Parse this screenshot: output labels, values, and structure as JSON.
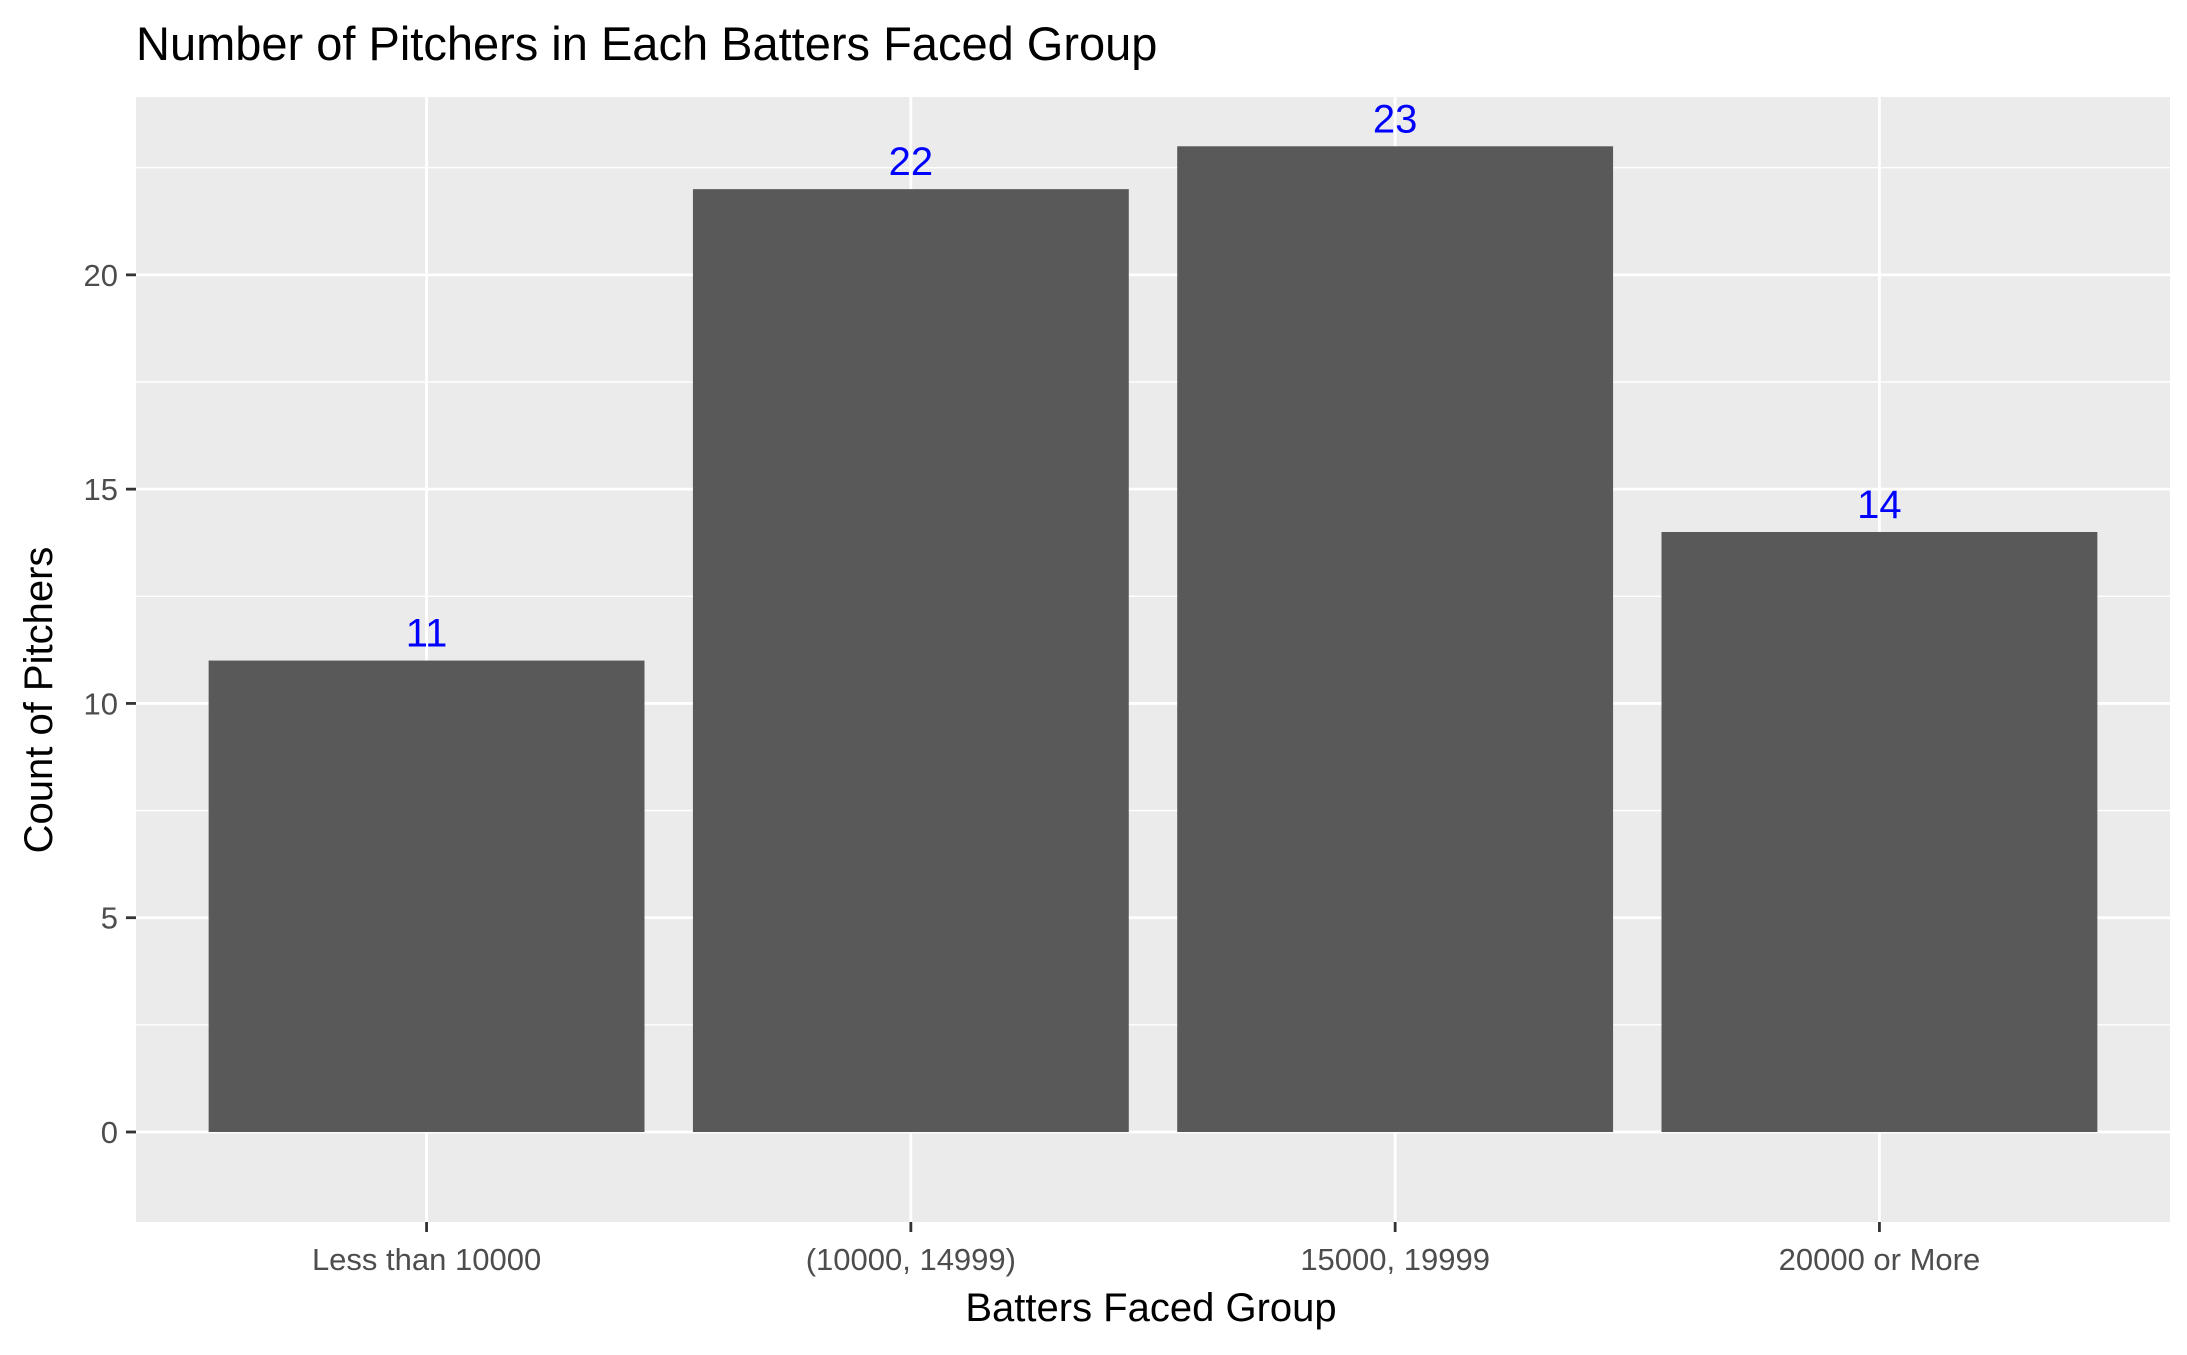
{
  "chart_data": {
    "type": "bar",
    "title": "Number of Pitchers in Each Batters Faced Group",
    "xlabel": "Batters Faced Group",
    "ylabel": "Count of Pitchers",
    "categories": [
      "Less than 10000",
      "(10000, 14999)",
      "15000, 19999",
      "20000 or More"
    ],
    "values": [
      11,
      22,
      23,
      14
    ],
    "data_labels": [
      "11",
      "22",
      "23",
      "14"
    ],
    "yticks": [
      0,
      5,
      10,
      15,
      20
    ],
    "ytick_labels": [
      "0",
      "5",
      "10",
      "15",
      "20"
    ],
    "ylim": [
      -2.1,
      24.15
    ],
    "grid": true,
    "legend": "none",
    "colors": {
      "bar": "#595959",
      "panel": "#ebebeb",
      "grid": "#ffffff",
      "data_label": "#0000ff",
      "axis_text": "#4d4d4d",
      "title_text": "#000000"
    }
  }
}
